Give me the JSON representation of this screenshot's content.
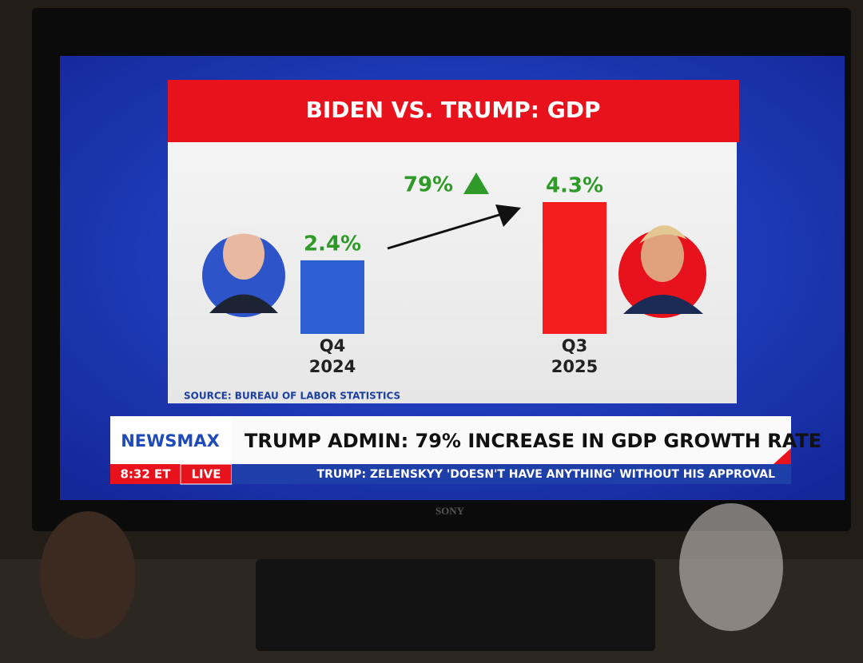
{
  "chart_data": {
    "type": "bar",
    "title": "BIDEN VS. TRUMP: GDP",
    "categories": [
      "Q4 2024",
      "Q3 2025"
    ],
    "values": [
      2.4,
      4.3
    ],
    "value_labels": [
      "2.4%",
      "4.3%"
    ],
    "colors": [
      "#2d5fd3",
      "#f51d1d"
    ],
    "annotation": "79%",
    "source": "SOURCE: BUREAU OF LABOR STATISTICS"
  },
  "banner": {
    "network": "NEWSMAX",
    "time": "8:32 ET",
    "live": "LIVE",
    "headline": "TRUMP ADMIN:  79% INCREASE IN GDP GROWTH RATE",
    "ticker": "TRUMP: ZELENSKYY 'DOESN'T HAVE ANYTHING' WITHOUT HIS APPROVAL"
  },
  "tv": {
    "brand": "SONY"
  }
}
